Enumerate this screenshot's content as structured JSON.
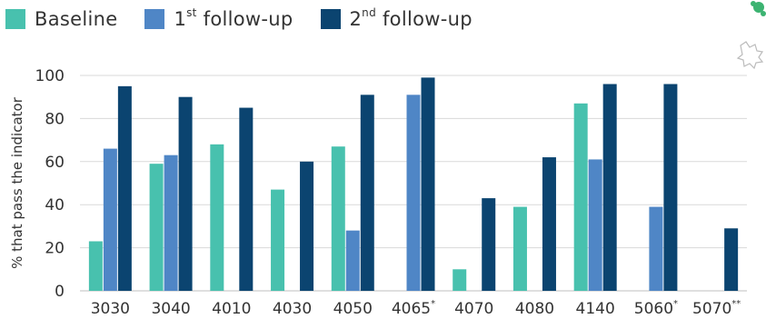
{
  "colors": {
    "baseline": "#48C1AE",
    "follow1": "#4F86C6",
    "follow2": "#0B4470",
    "grid": "#D9D9D9",
    "axis": "#BFBFBF",
    "text": "#333333"
  },
  "legend": [
    {
      "key": "baseline",
      "text": "Baseline",
      "sup": ""
    },
    {
      "key": "follow1",
      "text_pre": "1",
      "sup": "st",
      "text_post": " follow-up"
    },
    {
      "key": "follow2",
      "text_pre": "2",
      "sup": "nd",
      "text_post": " follow-up"
    }
  ],
  "chart_data": {
    "type": "bar",
    "ylabel": "% that pass the indicator",
    "ylim": [
      0,
      100
    ],
    "yticks": [
      0,
      20,
      40,
      60,
      80,
      100
    ],
    "grid": true,
    "legend_position": "top-left",
    "categories": [
      {
        "label": "3030",
        "sup": ""
      },
      {
        "label": "3040",
        "sup": ""
      },
      {
        "label": "4010",
        "sup": ""
      },
      {
        "label": "4030",
        "sup": ""
      },
      {
        "label": "4050",
        "sup": ""
      },
      {
        "label": "4065",
        "sup": "*"
      },
      {
        "label": "4070",
        "sup": ""
      },
      {
        "label": "4080",
        "sup": ""
      },
      {
        "label": "4140",
        "sup": ""
      },
      {
        "label": "5060",
        "sup": "*"
      },
      {
        "label": "5070",
        "sup": "**"
      }
    ],
    "series": [
      {
        "name": "Baseline",
        "key": "baseline",
        "values": [
          23,
          59,
          68,
          47,
          67,
          null,
          10,
          39,
          87,
          null,
          null
        ]
      },
      {
        "name": "1st follow-up",
        "key": "follow1",
        "values": [
          66,
          63,
          null,
          null,
          28,
          91,
          null,
          null,
          61,
          39,
          null
        ]
      },
      {
        "name": "2nd follow-up",
        "key": "follow2",
        "values": [
          95,
          90,
          85,
          60,
          91,
          99,
          43,
          62,
          96,
          96,
          29
        ]
      }
    ]
  }
}
